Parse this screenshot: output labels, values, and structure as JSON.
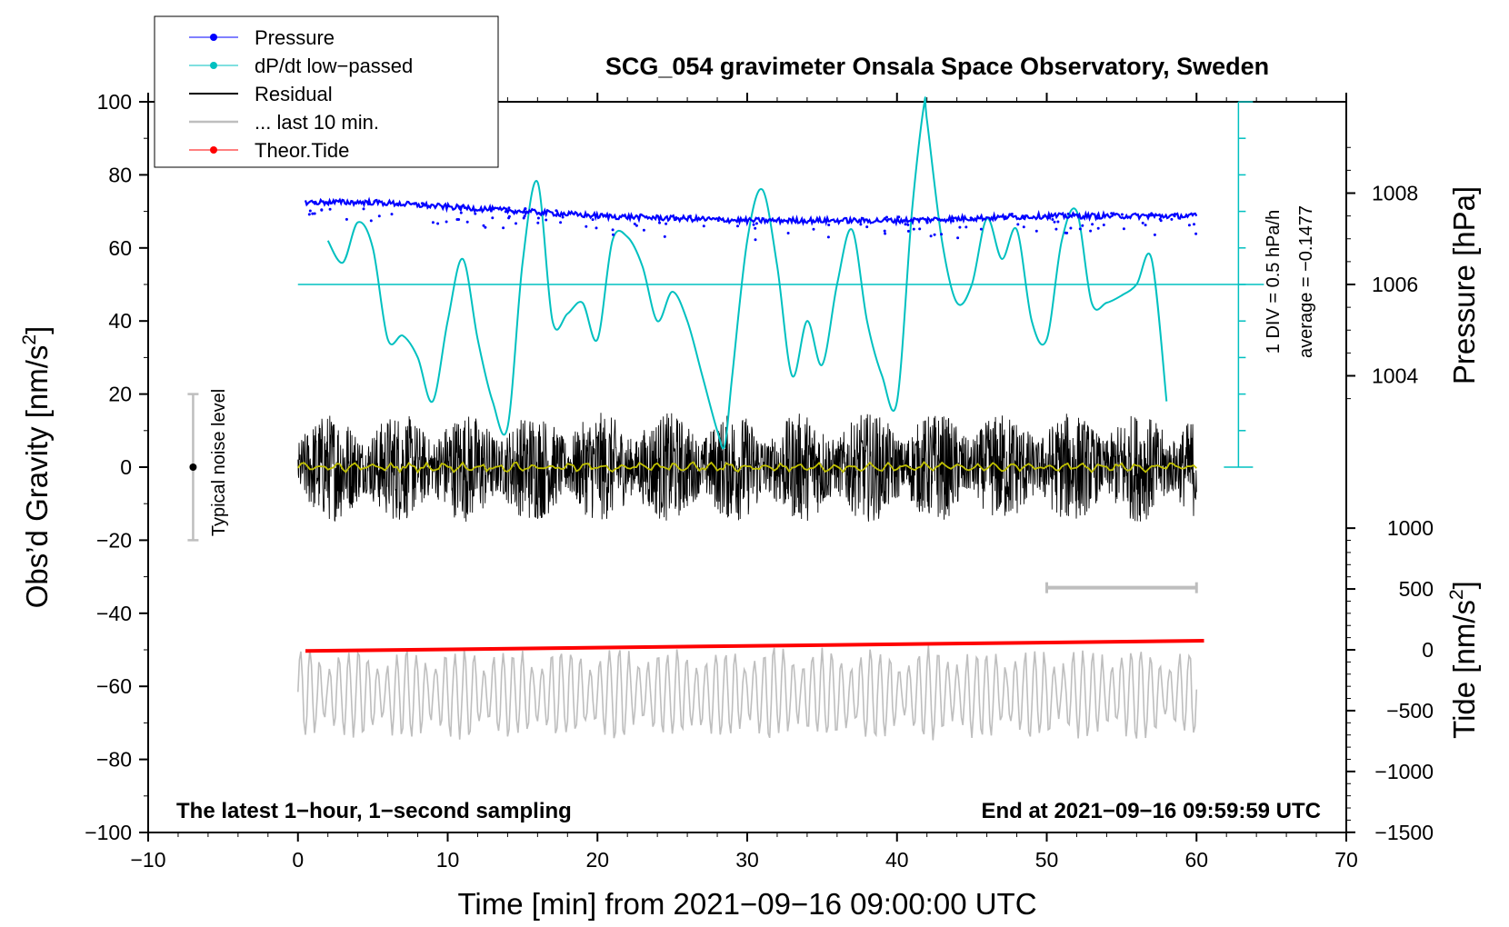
{
  "chart_data": {
    "type": "line",
    "title": "SCG_054 gravimeter Onsala Space Observatory, Sweden",
    "xlabel": "Time [min] from 2021−09−16 09:00:00 UTC",
    "ylabel": "Obs’d Gravity [nm/s",
    "ylabel_sup": "2",
    "ylabel_tail": "]",
    "y2label_pressure": "Pressure [hPa]",
    "y2label_tide": "Tide [nm/s",
    "y2label_tide_sup": "2",
    "y2label_tide_tail": "]",
    "xlim": [
      -10,
      70
    ],
    "ylim": [
      -100,
      100
    ],
    "x_ticks": [
      "−10",
      "0",
      "10",
      "20",
      "30",
      "40",
      "50",
      "60",
      "70"
    ],
    "x_tick_values": [
      -10,
      0,
      10,
      20,
      30,
      40,
      50,
      60,
      70
    ],
    "y_ticks": [
      "100",
      "80",
      "60",
      "40",
      "20",
      "0",
      "−20",
      "−40",
      "−60",
      "−80",
      "−100"
    ],
    "y_tick_values": [
      100,
      80,
      60,
      40,
      20,
      0,
      -20,
      -40,
      -60,
      -80,
      -100
    ],
    "pressure_axis": {
      "ticks": [
        "1008",
        "1006",
        "1004"
      ],
      "tick_values": [
        1008,
        1006,
        1004
      ],
      "gravity_at_1006": 50,
      "gravity_per_hPa": 12.5
    },
    "tide_axis": {
      "ticks": [
        "1000",
        "500",
        "0",
        "−500",
        "−1000",
        "−1500"
      ],
      "tick_values": [
        1000,
        500,
        0,
        -500,
        -1000,
        -1500
      ],
      "gravity_at_0": -50,
      "gravity_per_1000": 33.3
    },
    "legend": [
      {
        "label": "Pressure",
        "color": "#0000ff",
        "marker": true
      },
      {
        "label": "dP/dt low−passed",
        "color": "#00c0c0",
        "marker": true
      },
      {
        "label": "Residual",
        "color": "#000000",
        "marker": false
      },
      {
        "label": "... last 10 min.",
        "color": "#bebebe",
        "marker": false
      },
      {
        "label": "Theor.Tide",
        "color": "#ff0000",
        "marker": true
      }
    ],
    "series": [
      {
        "name": "Pressure",
        "color": "#0000ff",
        "x": [
          0.5,
          5,
          10,
          15,
          20,
          25,
          30,
          35,
          40,
          45,
          50,
          55,
          60
        ],
        "y_hPa": [
          1007.8,
          1007.8,
          1007.7,
          1007.6,
          1007.5,
          1007.45,
          1007.4,
          1007.4,
          1007.4,
          1007.45,
          1007.5,
          1007.5,
          1007.5
        ]
      },
      {
        "name": "dP/dt low−passed",
        "color": "#00c0c0",
        "x": [
          2,
          3,
          4,
          5,
          6,
          7,
          8,
          9,
          10,
          11,
          12,
          13,
          14,
          15,
          16,
          17,
          18,
          19,
          20,
          21,
          22,
          23,
          24,
          25,
          26,
          27,
          28,
          28.5,
          29,
          30,
          31,
          32,
          33,
          34,
          35,
          36,
          37,
          38,
          39,
          40,
          41,
          41.8,
          42,
          43,
          44,
          45,
          46,
          47,
          48,
          49,
          50,
          51,
          52,
          53,
          54,
          55,
          56,
          57,
          58
        ],
        "y": [
          62,
          56,
          67,
          60,
          35,
          36,
          30,
          18,
          40,
          57,
          35,
          18,
          11,
          56,
          78,
          40,
          42,
          45,
          35,
          62,
          63,
          55,
          40,
          48,
          40,
          25,
          10,
          6,
          25,
          62,
          76,
          55,
          25,
          40,
          28,
          50,
          65,
          40,
          25,
          18,
          70,
          99,
          95,
          62,
          45,
          50,
          68,
          57,
          65,
          40,
          35,
          62,
          70,
          45,
          45,
          47,
          50,
          57,
          18
        ]
      },
      {
        "name": "Residual",
        "color": "#000000",
        "x_range": [
          0,
          60
        ],
        "amplitude_nm_s2": 15
      },
      {
        "name": "Residual smoothed",
        "color": "#c0c000",
        "x_range": [
          0,
          60
        ],
        "y": 0
      },
      {
        "name": "... last 10 min.",
        "color": "#bebebe",
        "x_range": [
          0,
          60
        ],
        "center_nm_s2": -62,
        "amplitude_nm_s2": 12
      },
      {
        "name": "Theor.Tide",
        "color": "#ff0000",
        "x": [
          0.5,
          60.5
        ],
        "y_tide": [
          -10,
          75
        ]
      }
    ],
    "noise_bar": {
      "label": "Typical noise level",
      "x": -7,
      "ylim": [
        -20,
        20
      ]
    },
    "dpdt_scale": {
      "label_div": "1 DIV = 0.5 hPa/h",
      "label_avg": "average = −0.1477",
      "baseline": 50,
      "range": [
        0,
        100
      ]
    },
    "window_bar": {
      "xlim": [
        50,
        60
      ],
      "y": -33
    },
    "annotation_left": "The latest 1−hour, 1−second sampling",
    "annotation_right": "End at 2021−09−16 09:59:59 UTC"
  }
}
